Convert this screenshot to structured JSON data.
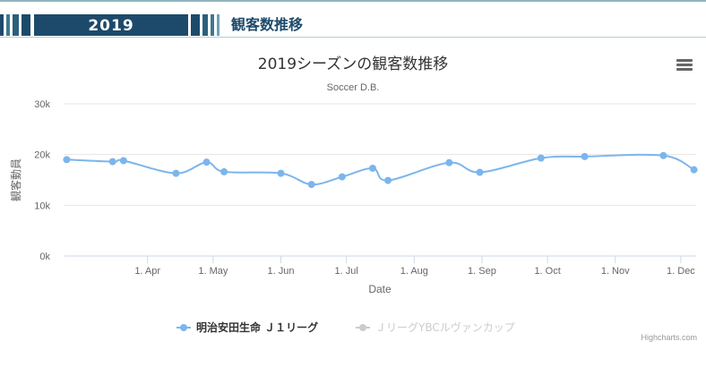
{
  "header": {
    "year": "2019",
    "title": "観客数推移"
  },
  "credit": "Highcharts.com",
  "colors": {
    "series1": "#7cb5ec",
    "series2": "#cccccc",
    "header_dark": "#1d4a6b"
  },
  "chart_data": {
    "type": "line",
    "title": "2019シーズンの観客数推移",
    "subtitle": "Soccer D.B.",
    "xlabel": "Date",
    "ylabel": "観客動員",
    "ylim": [
      0,
      30000
    ],
    "yticks": [
      {
        "value": 0,
        "label": "0k"
      },
      {
        "value": 10000,
        "label": "10k"
      },
      {
        "value": 20000,
        "label": "20k"
      },
      {
        "value": 30000,
        "label": "30k"
      }
    ],
    "xlim": [
      "2019-02-22",
      "2019-12-08"
    ],
    "xticks": [
      {
        "date": "2019-04-01",
        "label": "1. Apr"
      },
      {
        "date": "2019-05-01",
        "label": "1. May"
      },
      {
        "date": "2019-06-01",
        "label": "1. Jun"
      },
      {
        "date": "2019-07-01",
        "label": "1. Jul"
      },
      {
        "date": "2019-08-01",
        "label": "1. Aug"
      },
      {
        "date": "2019-09-01",
        "label": "1. Sep"
      },
      {
        "date": "2019-10-01",
        "label": "1. Oct"
      },
      {
        "date": "2019-11-01",
        "label": "1. Nov"
      },
      {
        "date": "2019-12-01",
        "label": "1. Dec"
      }
    ],
    "grid": true,
    "legend_position": "bottom-center",
    "series": [
      {
        "name": "明治安田生命 Ｊ１リーグ",
        "visible": true,
        "points": [
          {
            "date": "2019-02-23",
            "value": 19000
          },
          {
            "date": "2019-03-16",
            "value": 18600
          },
          {
            "date": "2019-03-21",
            "value": 18800
          },
          {
            "date": "2019-04-14",
            "value": 16300
          },
          {
            "date": "2019-04-28",
            "value": 18500
          },
          {
            "date": "2019-05-06",
            "value": 16600
          },
          {
            "date": "2019-06-01",
            "value": 16300
          },
          {
            "date": "2019-06-15",
            "value": 14100
          },
          {
            "date": "2019-06-29",
            "value": 15600
          },
          {
            "date": "2019-07-13",
            "value": 17300
          },
          {
            "date": "2019-07-20",
            "value": 14900
          },
          {
            "date": "2019-08-17",
            "value": 18400
          },
          {
            "date": "2019-08-31",
            "value": 16500
          },
          {
            "date": "2019-09-28",
            "value": 19300
          },
          {
            "date": "2019-10-18",
            "value": 19600
          },
          {
            "date": "2019-11-23",
            "value": 19800
          },
          {
            "date": "2019-12-07",
            "value": 17000
          }
        ]
      },
      {
        "name": "ＪリーグYBCルヴァンカップ",
        "visible": false,
        "points": []
      }
    ]
  }
}
